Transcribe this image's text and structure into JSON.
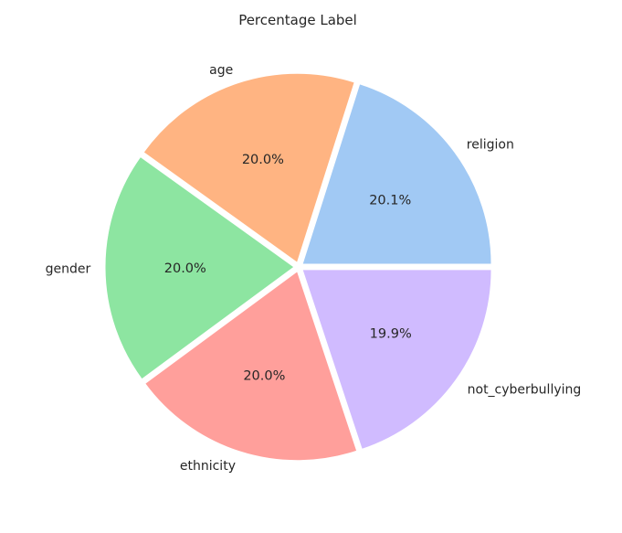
{
  "chart_data": {
    "type": "pie",
    "title": "Percentage Label",
    "start_angle_deg": 0,
    "direction": "counterclockwise",
    "slices": [
      {
        "label": "religion",
        "value": 20.1,
        "pct_label": "20.1%",
        "color": "#a1c9f4"
      },
      {
        "label": "age",
        "value": 20.0,
        "pct_label": "20.0%",
        "color": "#ffb482"
      },
      {
        "label": "gender",
        "value": 20.0,
        "pct_label": "20.0%",
        "color": "#8de5a1"
      },
      {
        "label": "ethnicity",
        "value": 20.0,
        "pct_label": "20.0%",
        "color": "#ff9f9b"
      },
      {
        "label": "not_cyberbullying",
        "value": 19.9,
        "pct_label": "19.9%",
        "color": "#d0bbff"
      }
    ]
  }
}
